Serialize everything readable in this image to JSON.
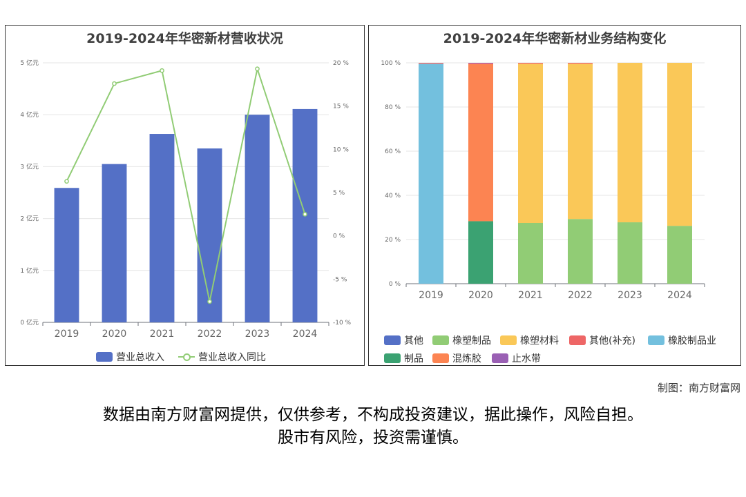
{
  "colors": {
    "revenue_bar": "#5470c6",
    "yoy_line": "#91cc75",
    "other": "#5470c6",
    "rubber_plastic_products": "#91cc75",
    "rubber_plastic_materials": "#fac858",
    "other_supplement": "#ee6666",
    "rubber_products_industry": "#73c0de",
    "products": "#3ba272",
    "mixing_rubber": "#fc8452",
    "waterstop": "#9a60b4"
  },
  "left_chart": {
    "title": "2019-2024年华密新材营收状况"
  },
  "right_chart": {
    "title": "2019-2024年华密新材业务结构变化"
  },
  "chart_data": [
    {
      "type": "bar",
      "title": "2019-2024年华密新材营收状况",
      "categories": [
        "2019",
        "2020",
        "2021",
        "2022",
        "2023",
        "2024"
      ],
      "y_left": {
        "ticks": [
          "0 亿元",
          "1 亿元",
          "2 亿元",
          "3 亿元",
          "4 亿元",
          "5 亿元"
        ],
        "range": [
          0,
          5
        ]
      },
      "y_right": {
        "ticks": [
          "-10 %",
          "-5 %",
          "0 %",
          "5 %",
          "10 %",
          "15 %",
          "20 %"
        ],
        "range": [
          -10,
          20
        ]
      },
      "series": [
        {
          "name": "营业总收入",
          "type": "bar",
          "axis": "left",
          "values": [
            2.59,
            3.05,
            3.63,
            3.35,
            4.0,
            4.11
          ]
        },
        {
          "name": "营业总收入同比",
          "type": "line",
          "axis": "right",
          "values": [
            6.3,
            17.6,
            19.1,
            -7.6,
            19.3,
            2.5
          ]
        }
      ],
      "legend_position": "bottom"
    },
    {
      "type": "bar",
      "stacked": true,
      "title": "2019-2024年华密新材业务结构变化",
      "categories": [
        "2019",
        "2020",
        "2021",
        "2022",
        "2023",
        "2024"
      ],
      "y": {
        "ticks": [
          "0 %",
          "20 %",
          "40 %",
          "60 %",
          "80 %",
          "100 %"
        ],
        "range": [
          0,
          100
        ]
      },
      "series": [
        {
          "name": "其他",
          "values": [
            0,
            0,
            0,
            0,
            0,
            0
          ]
        },
        {
          "name": "橡塑制品",
          "values": [
            0,
            0,
            27.5,
            29.3,
            27.8,
            26.2
          ]
        },
        {
          "name": "橡塑材料",
          "values": [
            0,
            0,
            72.1,
            70.3,
            72.2,
            73.8
          ]
        },
        {
          "name": "其他(补充)",
          "values": [
            0.4,
            0.4,
            0.4,
            0.4,
            0,
            0
          ]
        },
        {
          "name": "橡胶制品业",
          "values": [
            99.6,
            0,
            0,
            0,
            0,
            0
          ]
        },
        {
          "name": "制品",
          "values": [
            0,
            28.3,
            0,
            0,
            0,
            0
          ]
        },
        {
          "name": "混炼胶",
          "values": [
            0,
            71.1,
            0,
            0,
            0,
            0
          ]
        },
        {
          "name": "止水带",
          "values": [
            0,
            0.2,
            0,
            0,
            0,
            0
          ]
        }
      ],
      "legend_position": "bottom"
    }
  ],
  "footer": {
    "credit": "制图：南方财富网",
    "disclaimer_line1": "数据由南方财富网提供，仅供参考，不构成投资建议，据此操作，风险自担。",
    "disclaimer_line2": "股市有风险，投资需谨慎。"
  }
}
